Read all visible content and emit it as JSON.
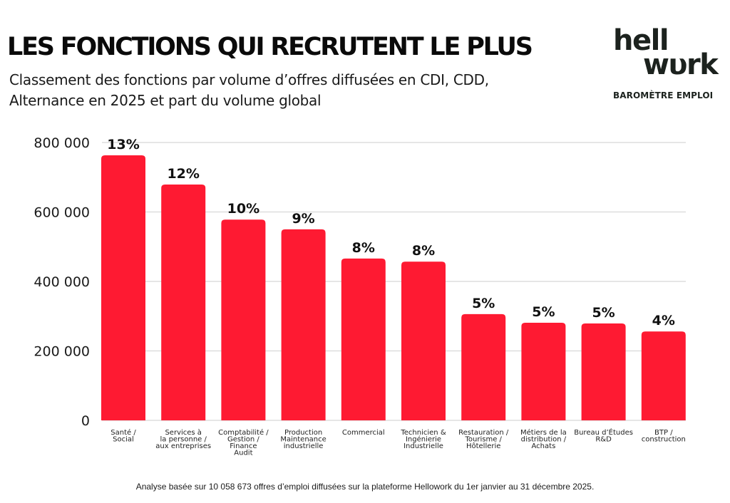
{
  "header": {
    "title": "LES FONCTIONS QUI RECRUTENT LE PLUS",
    "subtitle_line1": "Classement des fonctions par volume d’offres diffusées en CDI, CDD,",
    "subtitle_line2": "Alternance en 2025 et part du volume global"
  },
  "logo": {
    "line1": "hell",
    "line2": "wυrk",
    "tagline": "BAROMÈTRE EMPLOI"
  },
  "footnote": "Analyse basée sur 10 058 673 offres d’emploi diffusées sur la plateforme Hellowork du 1er janvier au 31 décembre 2025.",
  "colors": {
    "bar": "#fe1a32",
    "grid": "#dedede",
    "text": "#111111"
  },
  "chart_data": {
    "type": "bar",
    "title": "LES FONCTIONS QUI RECRUTENT LE PLUS",
    "subtitle": "Classement des fonctions par volume d’offres diffusées en CDI, CDD, Alternance en 2025 et part du volume global",
    "xlabel": "",
    "ylabel": "",
    "ylim": [
      0,
      800000
    ],
    "yticks": [
      0,
      200000,
      400000,
      600000,
      800000
    ],
    "ytick_labels": [
      "0",
      "200 000",
      "400 000",
      "600 000",
      "800 000"
    ],
    "grid": true,
    "legend": "none",
    "categories": [
      [
        "Santé /",
        "Social"
      ],
      [
        "Services à",
        "la personne /",
        "aux entreprises"
      ],
      [
        "Comptabilité /",
        "Gestion /",
        "Finance",
        "Audit"
      ],
      [
        "Production",
        "Maintenance",
        "industrielle"
      ],
      [
        "Commercial"
      ],
      [
        "Technicien &",
        "Ingénierie",
        "Industrielle"
      ],
      [
        "Restauration /",
        "Tourisme /",
        "Hôtellerie"
      ],
      [
        "Métiers de la",
        "distribution /",
        "Achats"
      ],
      [
        "Bureau d’Études",
        "R&D"
      ],
      [
        "BTP /",
        "construction"
      ]
    ],
    "values": [
      763000,
      679000,
      578000,
      550000,
      466000,
      457000,
      306000,
      281000,
      279000,
      256000
    ],
    "data_labels": [
      "13%",
      "12%",
      "10%",
      "9%",
      "8%",
      "8%",
      "5%",
      "5%",
      "5%",
      "4%"
    ]
  }
}
